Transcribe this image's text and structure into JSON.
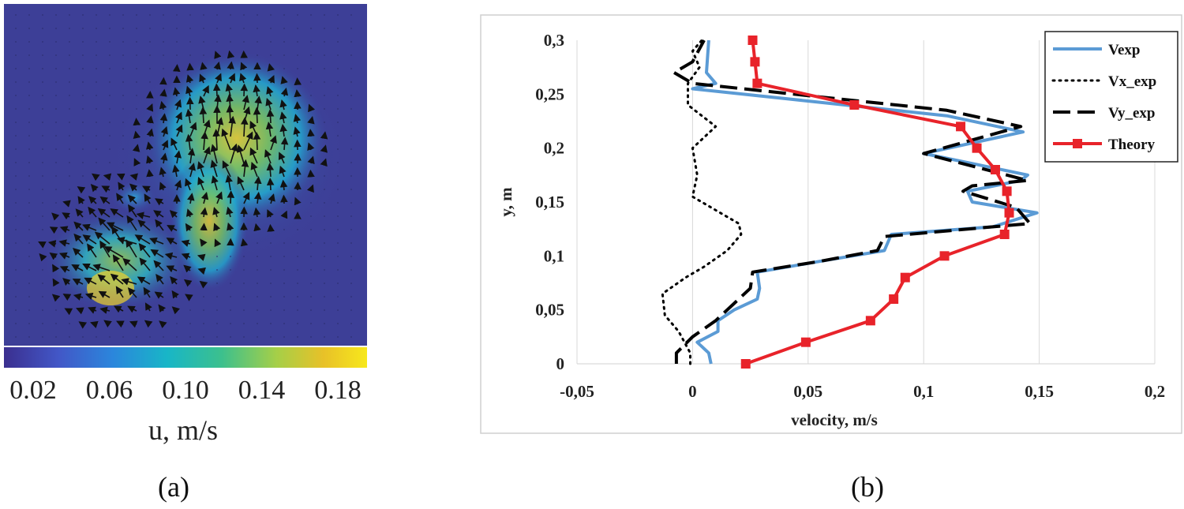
{
  "panel_a": {
    "label": "(a)",
    "colorbar": {
      "ticks": [
        "0.02",
        "0.06",
        "0.10",
        "0.14",
        "0.18"
      ],
      "label": "u, m/s",
      "colors": [
        "#3b2f8f",
        "#4b5cc4",
        "#2f86d9",
        "#18b7c8",
        "#3cc08d",
        "#9ccf4d",
        "#e7c12a",
        "#f6e51d"
      ]
    }
  },
  "panel_b": {
    "label": "(b)"
  },
  "chart_data": [
    {
      "type": "heatmap",
      "title": "",
      "description_of_axes": "velocity field with colorbar",
      "colorbar_range": [
        0.0,
        0.2
      ],
      "colorbar_ticks": [
        0.02,
        0.06,
        0.1,
        0.14,
        0.18
      ],
      "colorbar_label": "u, m/s"
    },
    {
      "type": "line",
      "xlabel": "velocity, m/s",
      "ylabel": "y, m",
      "xlim": [
        -0.05,
        0.2
      ],
      "ylim": [
        0,
        0.3
      ],
      "xticks": [
        -0.05,
        0,
        0.05,
        0.1,
        0.15,
        0.2
      ],
      "xtick_labels": [
        "-0,05",
        "0",
        "0,05",
        "0,1",
        "0,15",
        "0,2"
      ],
      "yticks": [
        0,
        0.05,
        0.1,
        0.15,
        0.2,
        0.25,
        0.3
      ],
      "ytick_labels": [
        "0",
        "0,05",
        "0,1",
        "0,15",
        "0,2",
        "0,25",
        "0,3"
      ],
      "grid": "vertical",
      "legend_position": "top-right",
      "series": [
        {
          "name": "Vexp",
          "color": "#5b9bd5",
          "style": "solid",
          "points": [
            [
              0.008,
              0.0
            ],
            [
              0.007,
              0.01
            ],
            [
              0.002,
              0.02
            ],
            [
              0.011,
              0.03
            ],
            [
              0.011,
              0.04
            ],
            [
              0.018,
              0.05
            ],
            [
              0.028,
              0.06
            ],
            [
              0.029,
              0.07
            ],
            [
              0.028,
              0.085
            ],
            [
              0.055,
              0.095
            ],
            [
              0.083,
              0.105
            ],
            [
              0.086,
              0.12
            ],
            [
              0.13,
              0.127
            ],
            [
              0.149,
              0.14
            ],
            [
              0.121,
              0.15
            ],
            [
              0.119,
              0.16
            ],
            [
              0.142,
              0.17
            ],
            [
              0.145,
              0.175
            ],
            [
              0.1,
              0.195
            ],
            [
              0.143,
              0.215
            ],
            [
              0.11,
              0.23
            ],
            [
              0.0,
              0.255
            ],
            [
              0.01,
              0.26
            ],
            [
              0.006,
              0.27
            ],
            [
              0.007,
              0.3
            ]
          ]
        },
        {
          "name": "Vx_exp",
          "color": "#000000",
          "style": "dotted",
          "points": [
            [
              -0.001,
              0.0
            ],
            [
              -0.001,
              0.01
            ],
            [
              -0.006,
              0.03
            ],
            [
              -0.012,
              0.045
            ],
            [
              -0.013,
              0.065
            ],
            [
              -0.003,
              0.08
            ],
            [
              0.005,
              0.09
            ],
            [
              0.015,
              0.105
            ],
            [
              0.021,
              0.12
            ],
            [
              0.02,
              0.13
            ],
            [
              0.012,
              0.14
            ],
            [
              0.0,
              0.155
            ],
            [
              0.002,
              0.175
            ],
            [
              0.0,
              0.2
            ],
            [
              0.01,
              0.22
            ],
            [
              -0.002,
              0.24
            ],
            [
              -0.002,
              0.26
            ],
            [
              0.003,
              0.275
            ],
            [
              0.0,
              0.29
            ],
            [
              0.004,
              0.3
            ]
          ]
        },
        {
          "name": "Vy_exp",
          "color": "#000000",
          "style": "dashed",
          "points": [
            [
              -0.007,
              0.0
            ],
            [
              -0.007,
              0.01
            ],
            [
              0.0,
              0.025
            ],
            [
              0.01,
              0.04
            ],
            [
              0.025,
              0.07
            ],
            [
              0.026,
              0.085
            ],
            [
              0.055,
              0.095
            ],
            [
              0.08,
              0.105
            ],
            [
              0.083,
              0.118
            ],
            [
              0.13,
              0.127
            ],
            [
              0.146,
              0.13
            ],
            [
              0.14,
              0.145
            ],
            [
              0.117,
              0.16
            ],
            [
              0.121,
              0.165
            ],
            [
              0.145,
              0.17
            ],
            [
              0.1,
              0.195
            ],
            [
              0.142,
              0.22
            ],
            [
              0.11,
              0.235
            ],
            [
              0.0,
              0.26
            ],
            [
              -0.008,
              0.27
            ],
            [
              0.0,
              0.28
            ],
            [
              0.005,
              0.3
            ]
          ]
        },
        {
          "name": "Theory",
          "color": "#e8232a",
          "style": "solid-square-markers",
          "points": [
            [
              0.023,
              0.0
            ],
            [
              0.049,
              0.02
            ],
            [
              0.077,
              0.04
            ],
            [
              0.087,
              0.06
            ],
            [
              0.092,
              0.08
            ],
            [
              0.109,
              0.1
            ],
            [
              0.135,
              0.12
            ],
            [
              0.137,
              0.14
            ],
            [
              0.136,
              0.16
            ],
            [
              0.131,
              0.18
            ],
            [
              0.123,
              0.2
            ],
            [
              0.116,
              0.22
            ],
            [
              0.07,
              0.24
            ],
            [
              0.028,
              0.26
            ],
            [
              0.027,
              0.28
            ],
            [
              0.026,
              0.3
            ]
          ]
        }
      ]
    }
  ]
}
